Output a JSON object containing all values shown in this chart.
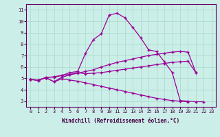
{
  "xlabel": "Windchill (Refroidissement éolien,°C)",
  "background_color": "#cceee8",
  "grid_color": "#aaddcc",
  "line_color": "#990099",
  "xlim": [
    -0.5,
    23.5
  ],
  "ylim": [
    2.5,
    11.5
  ],
  "xticks": [
    0,
    1,
    2,
    3,
    4,
    5,
    6,
    7,
    8,
    9,
    10,
    11,
    12,
    13,
    14,
    15,
    16,
    17,
    18,
    19,
    20,
    21,
    22,
    23
  ],
  "yticks": [
    3,
    4,
    5,
    6,
    7,
    8,
    9,
    10,
    11
  ],
  "line1_x": [
    0,
    1,
    2,
    3,
    4,
    5,
    6,
    7,
    8,
    9,
    10,
    11,
    12,
    13,
    14,
    15,
    16,
    17,
    18,
    19,
    20,
    21,
    22
  ],
  "line1_y": [
    4.9,
    4.8,
    5.1,
    5.1,
    5.25,
    5.5,
    5.6,
    7.2,
    8.4,
    8.9,
    10.55,
    10.7,
    10.3,
    9.45,
    8.55,
    7.5,
    7.35,
    6.45,
    5.5,
    3.05,
    3.0,
    2.95,
    2.95
  ],
  "line2_x": [
    0,
    1,
    2,
    3,
    4,
    5,
    6,
    7,
    8,
    9,
    10,
    11,
    12,
    13,
    14,
    15,
    16,
    17,
    18,
    19,
    20,
    21
  ],
  "line2_y": [
    4.9,
    4.85,
    5.05,
    4.7,
    5.1,
    5.3,
    5.45,
    5.6,
    5.75,
    6.0,
    6.2,
    6.4,
    6.55,
    6.7,
    6.85,
    7.0,
    7.1,
    7.2,
    7.3,
    7.35,
    7.3,
    5.5
  ],
  "line3_x": [
    0,
    1,
    2,
    3,
    4,
    5,
    6,
    7,
    8,
    9,
    10,
    11,
    12,
    13,
    14,
    15,
    16,
    17,
    18,
    19,
    20,
    21
  ],
  "line3_y": [
    4.9,
    4.85,
    5.05,
    5.15,
    5.25,
    5.35,
    5.5,
    5.4,
    5.45,
    5.5,
    5.6,
    5.7,
    5.8,
    5.9,
    6.0,
    6.1,
    6.2,
    6.3,
    6.4,
    6.45,
    6.5,
    5.5
  ],
  "line4_x": [
    0,
    1,
    2,
    3,
    4,
    5,
    6,
    7,
    8,
    9,
    10,
    11,
    12,
    13,
    14,
    15,
    16,
    17,
    18,
    19,
    20
  ],
  "line4_y": [
    4.9,
    4.85,
    5.05,
    4.7,
    4.95,
    4.85,
    4.75,
    4.6,
    4.45,
    4.3,
    4.15,
    4.0,
    3.85,
    3.7,
    3.55,
    3.4,
    3.25,
    3.15,
    3.05,
    3.0,
    2.95
  ]
}
